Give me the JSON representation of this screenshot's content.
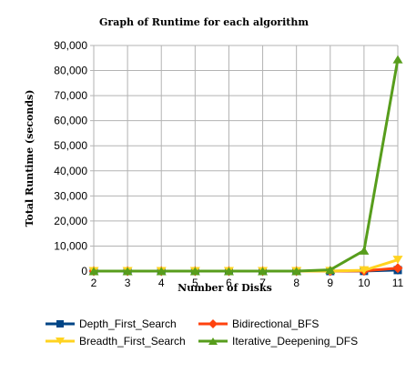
{
  "chart_data": {
    "type": "line",
    "title": "Graph of Runtime for each algorithm",
    "xlabel": "Number of Disks",
    "ylabel": "Total Runtime (seconds)",
    "categories": [
      "2",
      "3",
      "4",
      "5",
      "6",
      "7",
      "8",
      "9",
      "10",
      "11"
    ],
    "ylim": [
      0,
      90000
    ],
    "yticks": [
      "0",
      "10,000",
      "20,000",
      "30,000",
      "40,000",
      "50,000",
      "60,000",
      "70,000",
      "80,000",
      "90,000"
    ],
    "ytick_values": [
      0,
      10000,
      20000,
      30000,
      40000,
      50000,
      60000,
      70000,
      80000,
      90000
    ],
    "grid": true,
    "legend_position": "bottom",
    "series": [
      {
        "name": "Depth_First_Search",
        "color": "#004586",
        "marker": "square",
        "values": [
          0,
          0,
          0,
          0,
          0,
          0,
          0,
          0,
          50,
          400
        ]
      },
      {
        "name": "Bidirectional_BFS",
        "color": "#ff420e",
        "marker": "diamond",
        "values": [
          0,
          0,
          0,
          0,
          0,
          0,
          0,
          0,
          100,
          1200
        ]
      },
      {
        "name": "Breadth_First_Search",
        "color": "#ffd320",
        "marker": "triangle-down",
        "values": [
          0,
          0,
          0,
          0,
          0,
          0,
          0,
          50,
          300,
          4500
        ]
      },
      {
        "name": "Iterative_Deepening_DFS",
        "color": "#579d1c",
        "marker": "triangle-up",
        "values": [
          0,
          0,
          0,
          0,
          0,
          0,
          0,
          500,
          8200,
          84500
        ]
      }
    ]
  }
}
